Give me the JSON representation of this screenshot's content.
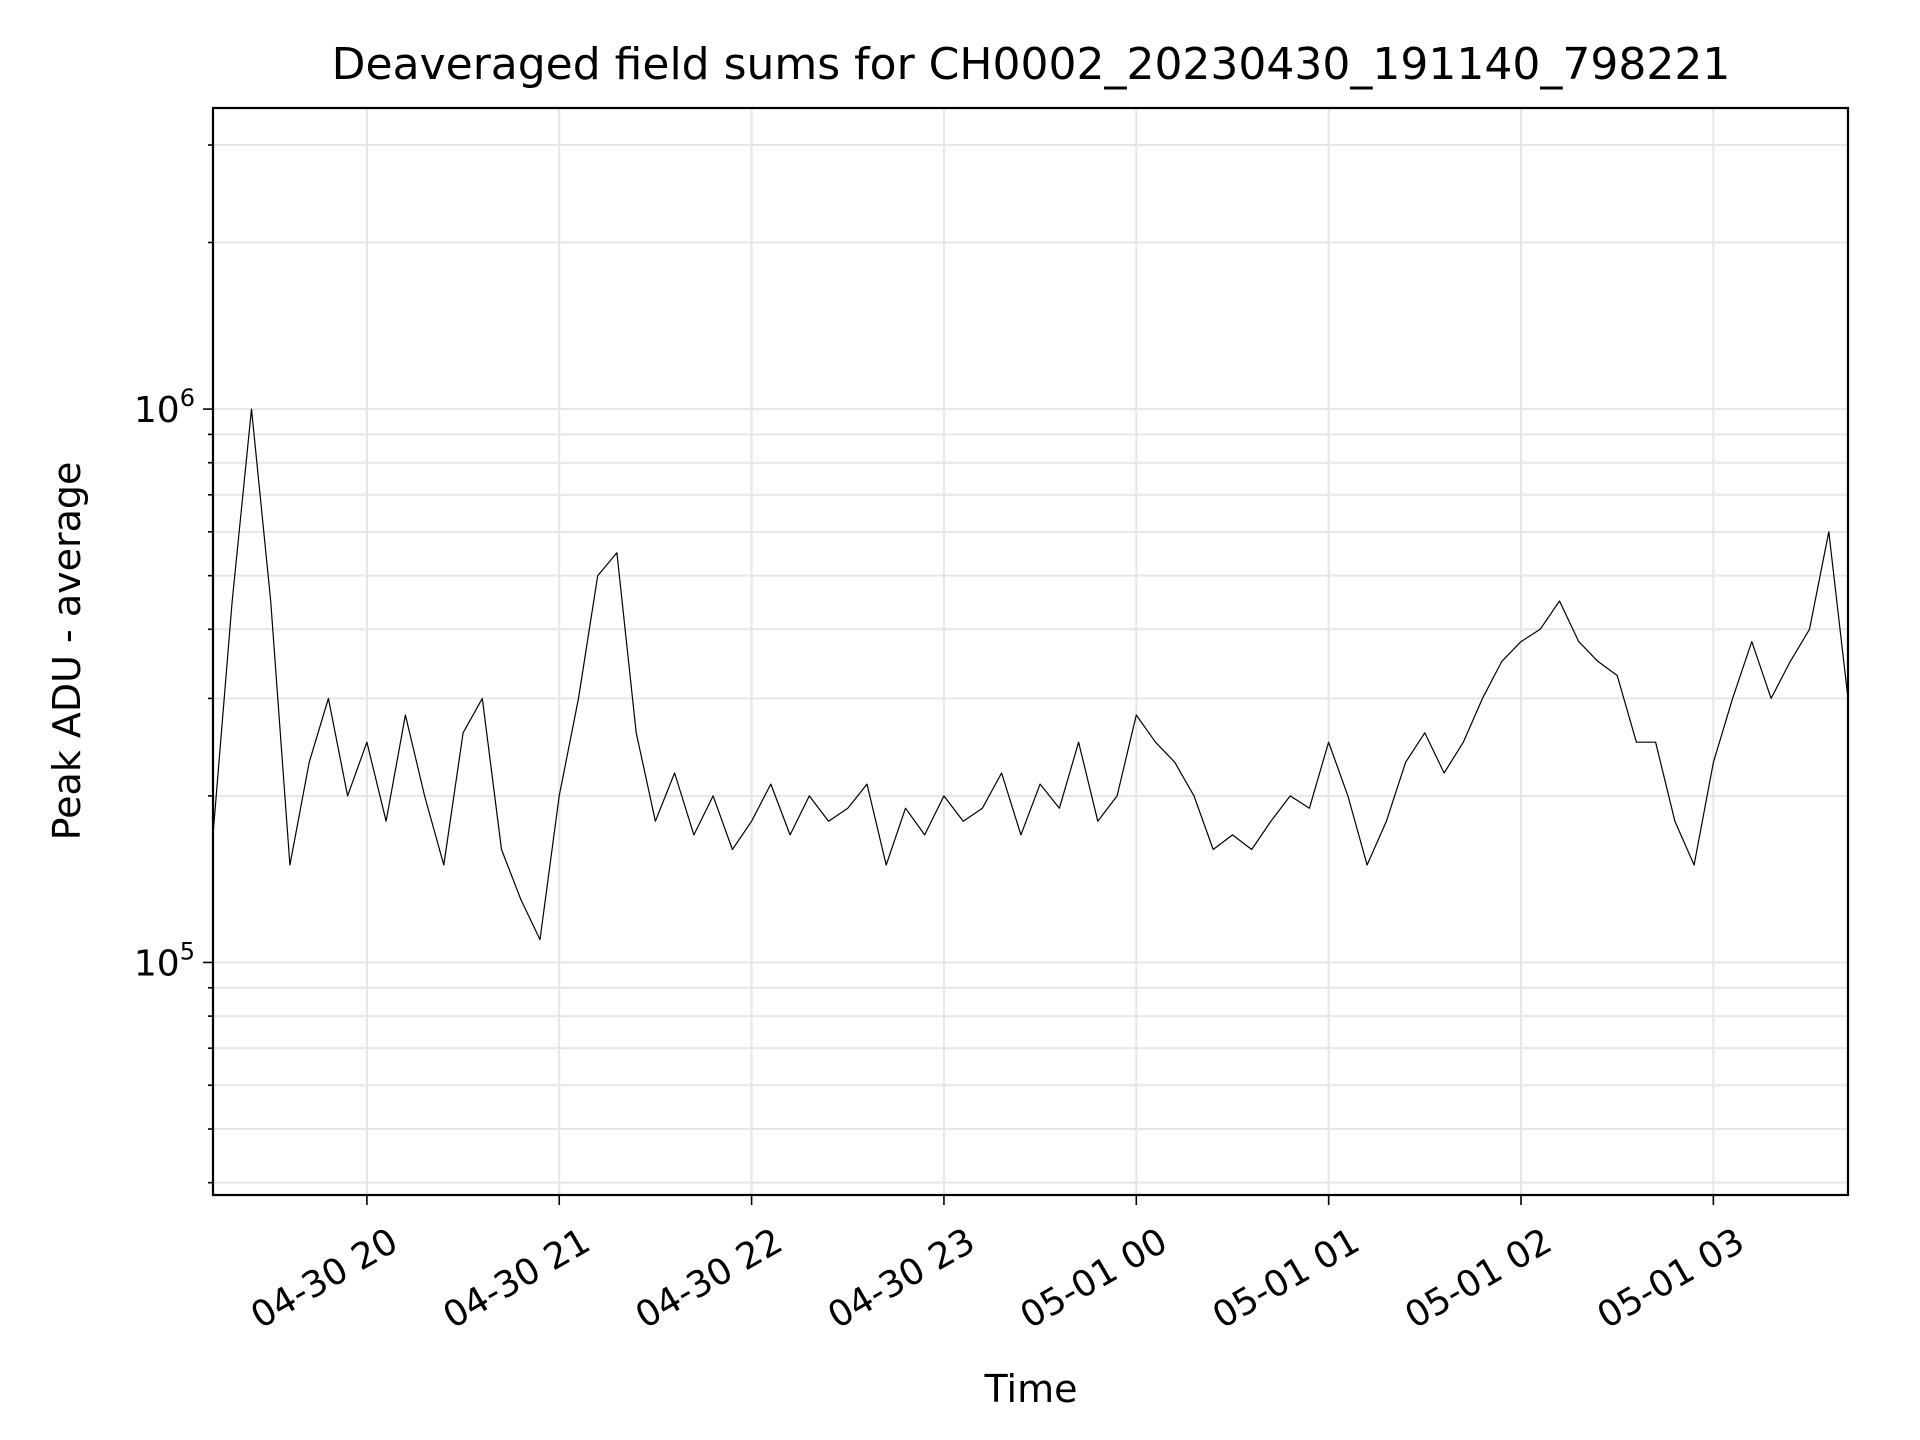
{
  "chart_data": {
    "type": "line",
    "title": "Deaveraged field sums for CH0002_20230430_191140_798221",
    "xlabel": "Time",
    "ylabel": "Peak ADU - average",
    "y_scale": "log",
    "ylim": [
      38000,
      3500000
    ],
    "xlim": [
      "2023-04-30 19:12",
      "2023-05-01 03:42"
    ],
    "x_ticks": [
      {
        "label": "04-30 20",
        "value": "2023-04-30 20:00"
      },
      {
        "label": "04-30 21",
        "value": "2023-04-30 21:00"
      },
      {
        "label": "04-30 22",
        "value": "2023-04-30 22:00"
      },
      {
        "label": "04-30 23",
        "value": "2023-04-30 23:00"
      },
      {
        "label": "05-01 00",
        "value": "2023-05-01 00:00"
      },
      {
        "label": "05-01 01",
        "value": "2023-05-01 01:00"
      },
      {
        "label": "05-01 02",
        "value": "2023-05-01 02:00"
      },
      {
        "label": "05-01 03",
        "value": "2023-05-01 03:00"
      }
    ],
    "y_ticks": [
      {
        "base": "10",
        "exp": "5",
        "value": 100000
      },
      {
        "base": "10",
        "exp": "6",
        "value": 1000000
      }
    ],
    "grid": true,
    "line_color": "#000000",
    "grid_color": "#e6e6e6",
    "series": [
      {
        "x": [
          "2023-04-30 19:12",
          "2023-04-30 19:18",
          "2023-04-30 19:24",
          "2023-04-30 19:30",
          "2023-04-30 19:36",
          "2023-04-30 19:42",
          "2023-04-30 19:48",
          "2023-04-30 19:54",
          "2023-04-30 20:00",
          "2023-04-30 20:06",
          "2023-04-30 20:12",
          "2023-04-30 20:18",
          "2023-04-30 20:24",
          "2023-04-30 20:30",
          "2023-04-30 20:36",
          "2023-04-30 20:42",
          "2023-04-30 20:48",
          "2023-04-30 20:54",
          "2023-04-30 21:00",
          "2023-04-30 21:06",
          "2023-04-30 21:12",
          "2023-04-30 21:18",
          "2023-04-30 21:24",
          "2023-04-30 21:30",
          "2023-04-30 21:36",
          "2023-04-30 21:42",
          "2023-04-30 21:48",
          "2023-04-30 21:54",
          "2023-04-30 22:00",
          "2023-04-30 22:06",
          "2023-04-30 22:12",
          "2023-04-30 22:18",
          "2023-04-30 22:24",
          "2023-04-30 22:30",
          "2023-04-30 22:36",
          "2023-04-30 22:42",
          "2023-04-30 22:48",
          "2023-04-30 22:54",
          "2023-04-30 23:00",
          "2023-04-30 23:06",
          "2023-04-30 23:12",
          "2023-04-30 23:18",
          "2023-04-30 23:24",
          "2023-04-30 23:30",
          "2023-04-30 23:36",
          "2023-04-30 23:42",
          "2023-04-30 23:48",
          "2023-04-30 23:54",
          "2023-05-01 00:00",
          "2023-05-01 00:06",
          "2023-05-01 00:12",
          "2023-05-01 00:18",
          "2023-05-01 00:24",
          "2023-05-01 00:30",
          "2023-05-01 00:36",
          "2023-05-01 00:42",
          "2023-05-01 00:48",
          "2023-05-01 00:54",
          "2023-05-01 01:00",
          "2023-05-01 01:06",
          "2023-05-01 01:12",
          "2023-05-01 01:18",
          "2023-05-01 01:24",
          "2023-05-01 01:30",
          "2023-05-01 01:36",
          "2023-05-01 01:42",
          "2023-05-01 01:48",
          "2023-05-01 01:54",
          "2023-05-01 02:00",
          "2023-05-01 02:06",
          "2023-05-01 02:12",
          "2023-05-01 02:18",
          "2023-05-01 02:24",
          "2023-05-01 02:30",
          "2023-05-01 02:36",
          "2023-05-01 02:42",
          "2023-05-01 02:48",
          "2023-05-01 02:54",
          "2023-05-01 03:00",
          "2023-05-01 03:06",
          "2023-05-01 03:12",
          "2023-05-01 03:18",
          "2023-05-01 03:24",
          "2023-05-01 03:30",
          "2023-05-01 03:36",
          "2023-05-01 03:42"
        ],
        "y": [
          170000,
          450000,
          1000000,
          450000,
          150000,
          230000,
          300000,
          200000,
          250000,
          180000,
          280000,
          200000,
          150000,
          260000,
          300000,
          160000,
          130000,
          110000,
          200000,
          300000,
          500000,
          550000,
          260000,
          180000,
          220000,
          170000,
          200000,
          160000,
          180000,
          210000,
          170000,
          200000,
          180000,
          190000,
          210000,
          150000,
          190000,
          170000,
          200000,
          180000,
          190000,
          220000,
          170000,
          210000,
          190000,
          250000,
          180000,
          200000,
          280000,
          250000,
          230000,
          200000,
          160000,
          170000,
          160000,
          180000,
          200000,
          190000,
          250000,
          200000,
          150000,
          180000,
          230000,
          260000,
          220000,
          250000,
          300000,
          350000,
          380000,
          400000,
          450000,
          380000,
          350000,
          330000,
          250000,
          250000,
          180000,
          150000,
          230000,
          300000,
          380000,
          300000,
          350000,
          400000,
          600000,
          300000
        ]
      }
    ]
  }
}
